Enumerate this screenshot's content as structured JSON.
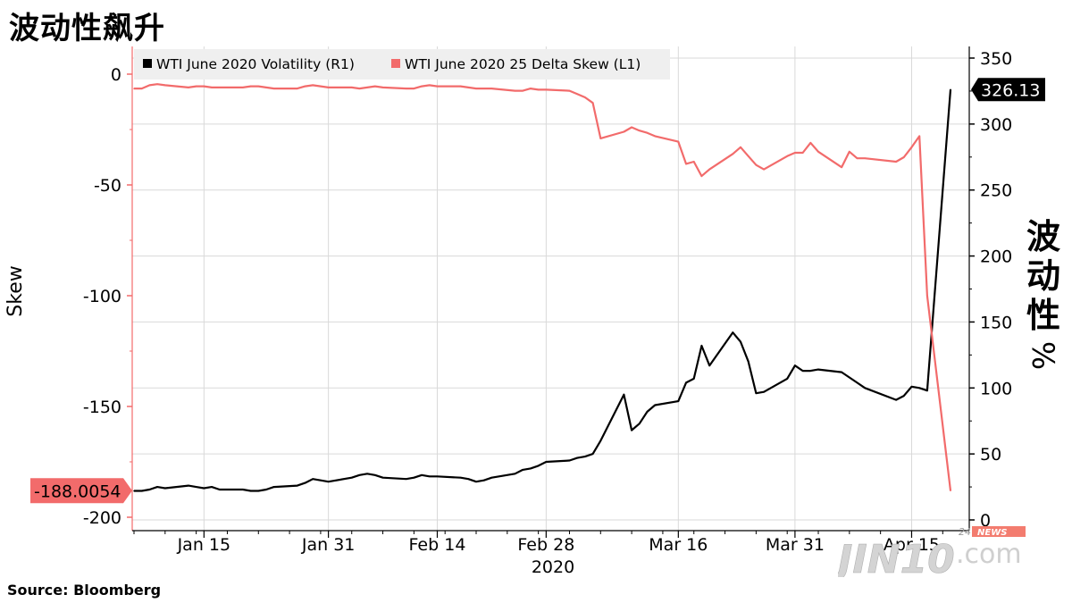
{
  "title": "波动性飙升",
  "source": "Source:  Bloomberg",
  "watermark": {
    "main": "JIN10",
    "suffix": ".com",
    "tag_num": "24",
    "tag_word": "NEWS"
  },
  "colors": {
    "volatility": "#000000",
    "skew": "#f26b6b",
    "grid": "#d9d9d9",
    "legend_bg": "#efefef"
  },
  "chart_data": {
    "type": "line",
    "x_ticks": [
      "Jan 15",
      "Jan 31",
      "Feb 14",
      "Feb 28",
      "Mar 16",
      "Mar 31",
      "Apr 15"
    ],
    "x_year": "2020",
    "left_axis": {
      "label": "Skew",
      "ticks": [
        "0",
        "-50",
        "-100",
        "-150",
        "-200"
      ],
      "min": -205,
      "max": 5
    },
    "right_axis": {
      "label": "波动性%",
      "ticks": [
        "350",
        "300",
        "250",
        "200",
        "150",
        "100",
        "50",
        "0"
      ],
      "min": 0,
      "max": 350
    },
    "grid": true,
    "legend": "top",
    "series": [
      {
        "name": "WTI June 2020 Volatility (R1)",
        "axis": "right",
        "last_value_label": "326.13",
        "x": [
          "2020-01-06",
          "2020-01-07",
          "2020-01-08",
          "2020-01-09",
          "2020-01-10",
          "2020-01-13",
          "2020-01-14",
          "2020-01-15",
          "2020-01-16",
          "2020-01-17",
          "2020-01-20",
          "2020-01-21",
          "2020-01-22",
          "2020-01-23",
          "2020-01-24",
          "2020-01-27",
          "2020-01-28",
          "2020-01-29",
          "2020-01-30",
          "2020-01-31",
          "2020-02-03",
          "2020-02-04",
          "2020-02-05",
          "2020-02-06",
          "2020-02-07",
          "2020-02-10",
          "2020-02-11",
          "2020-02-12",
          "2020-02-13",
          "2020-02-14",
          "2020-02-17",
          "2020-02-18",
          "2020-02-19",
          "2020-02-20",
          "2020-02-21",
          "2020-02-24",
          "2020-02-25",
          "2020-02-26",
          "2020-02-27",
          "2020-02-28",
          "2020-03-02",
          "2020-03-03",
          "2020-03-04",
          "2020-03-05",
          "2020-03-06",
          "2020-03-09",
          "2020-03-10",
          "2020-03-11",
          "2020-03-12",
          "2020-03-13",
          "2020-03-16",
          "2020-03-17",
          "2020-03-18",
          "2020-03-19",
          "2020-03-20",
          "2020-03-23",
          "2020-03-24",
          "2020-03-25",
          "2020-03-26",
          "2020-03-27",
          "2020-03-30",
          "2020-03-31",
          "2020-04-01",
          "2020-04-02",
          "2020-04-03",
          "2020-04-06",
          "2020-04-07",
          "2020-04-08",
          "2020-04-09",
          "2020-04-13",
          "2020-04-14",
          "2020-04-15",
          "2020-04-16",
          "2020-04-17",
          "2020-04-20"
        ],
        "values": [
          22,
          22,
          23,
          25,
          24,
          26,
          25,
          24,
          25,
          23,
          23,
          22,
          22,
          23,
          25,
          26,
          28,
          31,
          30,
          29,
          32,
          34,
          35,
          34,
          32,
          31,
          32,
          34,
          33,
          33,
          32,
          31,
          29,
          30,
          32,
          35,
          38,
          39,
          41,
          44,
          45,
          47,
          48,
          50,
          60,
          95,
          68,
          73,
          82,
          87,
          90,
          104,
          107,
          132,
          117,
          142,
          135,
          120,
          96,
          97,
          107,
          117,
          113,
          113,
          114,
          112,
          108,
          104,
          100,
          91,
          94,
          101,
          100,
          98,
          326.13
        ]
      },
      {
        "name": "WTI June 2020 25 Delta Skew (L1)",
        "axis": "left",
        "last_value_label": "-188.0054",
        "x": [
          "2020-01-06",
          "2020-01-07",
          "2020-01-08",
          "2020-01-09",
          "2020-01-10",
          "2020-01-13",
          "2020-01-14",
          "2020-01-15",
          "2020-01-16",
          "2020-01-17",
          "2020-01-20",
          "2020-01-21",
          "2020-01-22",
          "2020-01-23",
          "2020-01-24",
          "2020-01-27",
          "2020-01-28",
          "2020-01-29",
          "2020-01-30",
          "2020-01-31",
          "2020-02-03",
          "2020-02-04",
          "2020-02-05",
          "2020-02-06",
          "2020-02-07",
          "2020-02-10",
          "2020-02-11",
          "2020-02-12",
          "2020-02-13",
          "2020-02-14",
          "2020-02-17",
          "2020-02-18",
          "2020-02-19",
          "2020-02-20",
          "2020-02-21",
          "2020-02-24",
          "2020-02-25",
          "2020-02-26",
          "2020-02-27",
          "2020-02-28",
          "2020-03-02",
          "2020-03-03",
          "2020-03-04",
          "2020-03-05",
          "2020-03-06",
          "2020-03-09",
          "2020-03-10",
          "2020-03-11",
          "2020-03-12",
          "2020-03-13",
          "2020-03-16",
          "2020-03-17",
          "2020-03-18",
          "2020-03-19",
          "2020-03-20",
          "2020-03-23",
          "2020-03-24",
          "2020-03-25",
          "2020-03-26",
          "2020-03-27",
          "2020-03-30",
          "2020-03-31",
          "2020-04-01",
          "2020-04-02",
          "2020-04-03",
          "2020-04-06",
          "2020-04-07",
          "2020-04-08",
          "2020-04-09",
          "2020-04-13",
          "2020-04-14",
          "2020-04-15",
          "2020-04-16",
          "2020-04-17",
          "2020-04-20"
        ],
        "values": [
          -6.5,
          -6.5,
          -5,
          -4.5,
          -5,
          -6,
          -5.5,
          -5.5,
          -6,
          -6,
          -6,
          -5.5,
          -5.5,
          -6,
          -6.5,
          -6.5,
          -5.5,
          -5,
          -5.5,
          -6,
          -6,
          -6.5,
          -6,
          -5.5,
          -6,
          -6.5,
          -6.5,
          -5.5,
          -5,
          -5.5,
          -5.5,
          -6,
          -6.5,
          -6.5,
          -6.5,
          -7.5,
          -7.5,
          -6.5,
          -7,
          -7,
          -7.5,
          -9,
          -10.5,
          -13,
          -29,
          -26,
          -24,
          -25.5,
          -26.5,
          -28,
          -30.5,
          -40.5,
          -39.5,
          -46,
          -43,
          -36,
          -33,
          -37,
          -41,
          -43,
          -37,
          -35.5,
          -35.5,
          -31,
          -35,
          -42,
          -35,
          -38,
          -38,
          -39.5,
          -37.5,
          -33,
          -28,
          -100,
          -188.0054
        ]
      }
    ]
  }
}
